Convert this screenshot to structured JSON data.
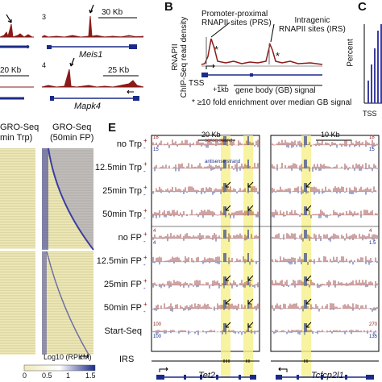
{
  "colors": {
    "signal_red": "#8b1a1a",
    "antisense_blue": "#1a2a8a",
    "highlight_yellow": "#f6f08a",
    "heat_bg": "#efe9b8",
    "heat_blue": "#3b3ea0"
  },
  "panelA": {
    "tracks": [
      {
        "number": "3",
        "scale": "30 Kb",
        "gene": "Meis1"
      },
      {
        "number": "4",
        "scale": "25 Kb",
        "gene": "Mapk4",
        "left_scale": "20 Kb"
      }
    ]
  },
  "panelB": {
    "letter": "B",
    "ylabel1": "RNAPII",
    "ylabel2": "ChIP-Seq read density",
    "prs_label1": "Promoter-proximal",
    "prs_label2": "RNAPII sites (PRS)",
    "irs_label1": "Intragenic",
    "irs_label2": "RNAPII sites (IRS)",
    "tss": "TSS",
    "kb": "+1kb",
    "gb": "gene body (GB) signal",
    "footnote": "≥10 fold enrichment over median GB signal",
    "star": "*"
  },
  "panelC": {
    "letter": "C",
    "ylabel": "Percent",
    "xlabel": "TSS"
  },
  "panelD": {
    "left_title1": "GRO-Seq",
    "left_title2": "min Trp)",
    "right_title1": "GRO-Seq",
    "right_title2": "(50min FP)",
    "legend_label": "Log10 (RPKM)",
    "legend_ticks": [
      "0",
      "0.5",
      "1",
      "1.5"
    ]
  },
  "panelE": {
    "letter": "E",
    "tet2_scale": "20 Kb",
    "tcf_scale": "10 Kb",
    "sense_label": "sense strand",
    "antisense_label": "antisense strand",
    "rows": [
      {
        "label": "no Trp",
        "top_l": "18",
        "bot_l": "15",
        "top_r": "18",
        "bot_r": "15"
      },
      {
        "label": "12.5min Trp",
        "top_l": "",
        "bot_l": "",
        "top_r": "",
        "bot_r": ""
      },
      {
        "label": "25min Trp",
        "top_l": "",
        "bot_l": "",
        "top_r": "",
        "bot_r": ""
      },
      {
        "label": "50min Trp",
        "top_l": "",
        "bot_l": "",
        "top_r": "",
        "bot_r": ""
      },
      {
        "label": "no FP",
        "top_l": "4",
        "bot_l": "4",
        "top_r": "4",
        "bot_r": "1.5"
      },
      {
        "label": "12.5min FP",
        "top_l": "",
        "bot_l": "",
        "top_r": "",
        "bot_r": ""
      },
      {
        "label": "25min FP",
        "top_l": "",
        "bot_l": "",
        "top_r": "",
        "bot_r": ""
      },
      {
        "label": "50min FP",
        "top_l": "",
        "bot_l": "",
        "top_r": "",
        "bot_r": ""
      },
      {
        "label": "Start-Seq",
        "top_l": "100",
        "bot_l": "100",
        "top_r": "270",
        "bot_r": "135"
      }
    ],
    "irs_label": "IRS",
    "gene_left": "Tet2",
    "gene_right": "Tcfcp2l1",
    "plus": "+",
    "minus": "-"
  }
}
